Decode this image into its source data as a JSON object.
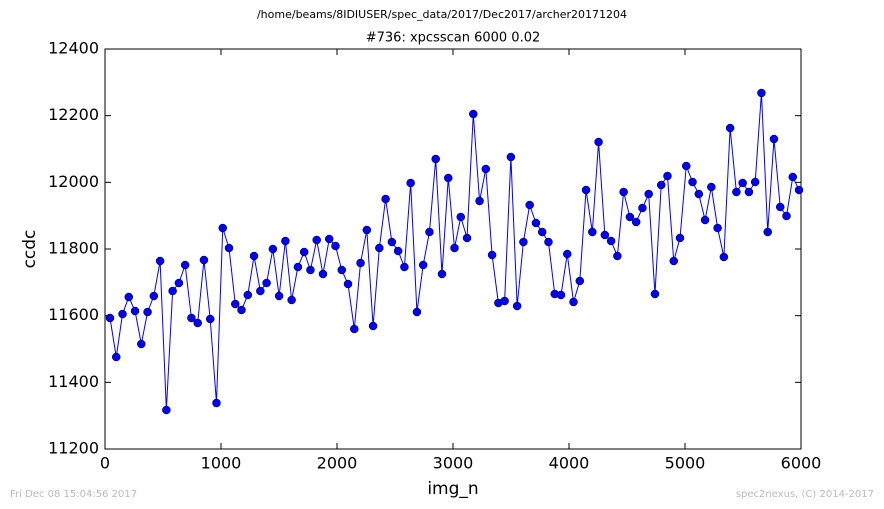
{
  "chart_data": {
    "type": "line",
    "subtitle": "/home/beams/8IDIUSER/spec_data/2017/Dec2017/archer20171204",
    "title": "#736: xpcsscan 6000 0.02",
    "x_label": "img_n",
    "y_label": "ccdc",
    "x": [
      43,
      97,
      151,
      205,
      259,
      313,
      367,
      421,
      475,
      529,
      583,
      637,
      691,
      745,
      799,
      853,
      907,
      961,
      1015,
      1069,
      1123,
      1177,
      1231,
      1285,
      1339,
      1393,
      1447,
      1501,
      1555,
      1609,
      1663,
      1717,
      1771,
      1825,
      1879,
      1933,
      1987,
      2041,
      2095,
      2149,
      2203,
      2257,
      2311,
      2365,
      2419,
      2473,
      2527,
      2581,
      2635,
      2689,
      2743,
      2797,
      2851,
      2905,
      2959,
      3013,
      3067,
      3121,
      3175,
      3229,
      3283,
      3337,
      3391,
      3445,
      3499,
      3553,
      3607,
      3661,
      3715,
      3769,
      3823,
      3877,
      3931,
      3985,
      4039,
      4093,
      4147,
      4201,
      4255,
      4309,
      4363,
      4417,
      4471,
      4525,
      4579,
      4633,
      4687,
      4741,
      4795,
      4849,
      4903,
      4957,
      5011,
      5065,
      5119,
      5173,
      5227,
      5281,
      5335,
      5389,
      5443,
      5497,
      5551,
      5605,
      5659,
      5713,
      5767,
      5821,
      5875,
      5929,
      5983
    ],
    "values": [
      11593,
      11476,
      11605,
      11656,
      11614,
      11515,
      11611,
      11659,
      11764,
      11317,
      11674,
      11698,
      11752,
      11593,
      11578,
      11767,
      11590,
      11338,
      11863,
      11803,
      11635,
      11617,
      11662,
      11779,
      11674,
      11698,
      11800,
      11659,
      11824,
      11647,
      11746,
      11791,
      11737,
      11827,
      11725,
      11830,
      11809,
      11737,
      11695,
      11560,
      11758,
      11857,
      11569,
      11803,
      11950,
      11821,
      11794,
      11746,
      11998,
      11611,
      11752,
      11851,
      12070,
      11725,
      12013,
      11803,
      11896,
      11833,
      12205,
      11944,
      12040,
      11782,
      11638,
      11644,
      12076,
      11629,
      11821,
      11932,
      11878,
      11851,
      11821,
      11665,
      11662,
      11785,
      11641,
      11704,
      11977,
      11851,
      12121,
      11842,
      11824,
      11779,
      11971,
      11896,
      11881,
      11923,
      11965,
      11665,
      11992,
      12019,
      11764,
      11833,
      12049,
      12001,
      11965,
      11887,
      11986,
      11863,
      11776,
      12163,
      11971,
      11998,
      11971,
      12001,
      12268,
      11851,
      12130,
      11926,
      11899,
      12016,
      11977
    ],
    "color": "#0000ff",
    "xlim": [
      0,
      6000
    ],
    "xticks": [
      0,
      1000,
      2000,
      3000,
      4000,
      5000,
      6000
    ],
    "ylim": [
      11200,
      12400
    ],
    "yticks": [
      11200,
      11400,
      11600,
      11800,
      12000,
      12200,
      12400
    ],
    "grid": false
  },
  "footer": {
    "left": "Fri Dec 08 15:04:56 2017",
    "right": "spec2nexus, (C) 2014-2017"
  }
}
